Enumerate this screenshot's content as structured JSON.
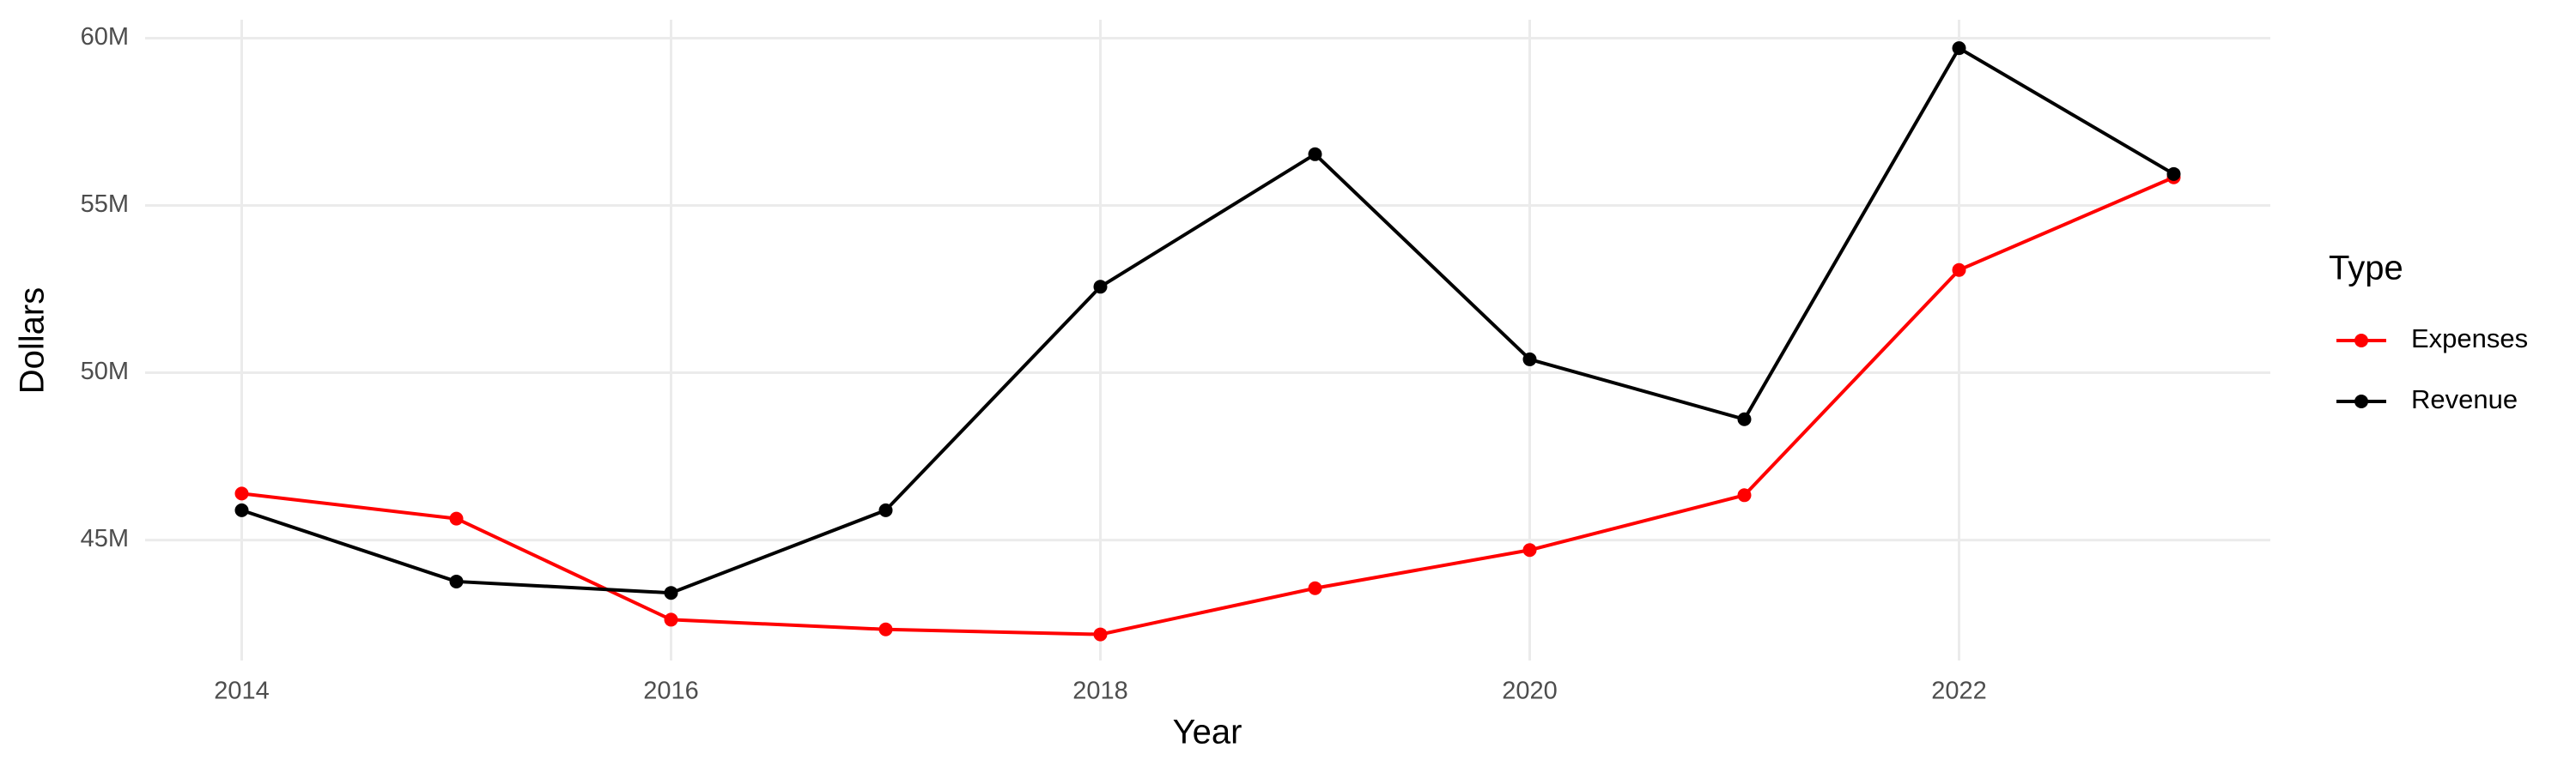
{
  "chart_data": {
    "type": "line",
    "x_label": "Year",
    "y_label": "Dollars",
    "legend_title": "Type",
    "x": [
      2014,
      2015,
      2016,
      2017,
      2018,
      2019,
      2020,
      2021,
      2022,
      2023
    ],
    "series": [
      {
        "name": "Expenses",
        "color": "#ff0000",
        "values": [
          46390000,
          45640000,
          42620000,
          42330000,
          42180000,
          43560000,
          44700000,
          46340000,
          53070000,
          55840000
        ]
      },
      {
        "name": "Revenue",
        "color": "#000000",
        "values": [
          45890000,
          43760000,
          43420000,
          45890000,
          52570000,
          56530000,
          50400000,
          48610000,
          59700000,
          55940000
        ]
      }
    ],
    "xlim": [
      2013.55,
      2023.45
    ],
    "xticks": [
      2014,
      2016,
      2018,
      2020,
      2022
    ],
    "ylim": [
      41400000,
      60550000
    ],
    "yticks": [
      {
        "value": 45000000,
        "label": "45M"
      },
      {
        "value": 50000000,
        "label": "50M"
      },
      {
        "value": 55000000,
        "label": "55M"
      },
      {
        "value": 60000000,
        "label": "60M"
      }
    ],
    "grid": true,
    "legend": "right"
  }
}
